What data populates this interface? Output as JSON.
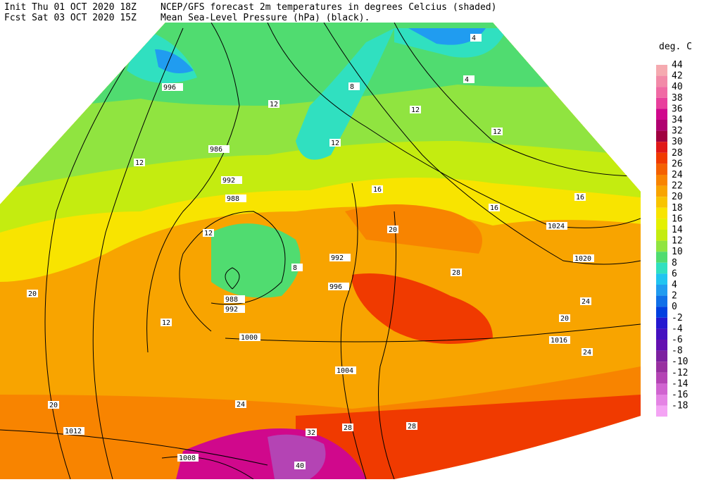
{
  "header": {
    "init": "Init  Thu 01 OCT 2020 18Z",
    "fcst": "Fcst Sat 03 OCT 2020 15Z",
    "title": "NCEP/GFS forecast 2m temperatures in degrees Celcius (shaded)",
    "subtitle": "Mean Sea-Level Pressure (hPa) (black)."
  },
  "legend": {
    "unit": "deg. C",
    "levels": [
      44,
      42,
      40,
      38,
      36,
      34,
      32,
      30,
      28,
      26,
      24,
      22,
      20,
      18,
      16,
      14,
      12,
      10,
      8,
      6,
      4,
      2,
      0,
      -2,
      -4,
      -6,
      -8,
      -10,
      -12,
      -14,
      -16,
      -18
    ],
    "colors": [
      "#f5aab0",
      "#f28aa8",
      "#f06aa4",
      "#e8409c",
      "#d0088c",
      "#b00070",
      "#a00040",
      "#e01818",
      "#f03a00",
      "#f46000",
      "#f88400",
      "#f8a400",
      "#f8c400",
      "#f8e400",
      "#e4f000",
      "#c4ec10",
      "#90e440",
      "#50dc70",
      "#30e0c0",
      "#20c4f0",
      "#209cf0",
      "#1070e8",
      "#0040e0",
      "#2418d0",
      "#4410c0",
      "#6410b0",
      "#7c20a0",
      "#9830a0",
      "#b444b4",
      "#d064d0",
      "#e484e4",
      "#f4a4f4"
    ]
  },
  "map": {
    "isobar_labels": [
      "996",
      "986",
      "992",
      "988",
      "988",
      "992",
      "992",
      "996",
      "1000",
      "1004",
      "1008",
      "1012",
      "1016",
      "1020",
      "1024"
    ],
    "temperature_labels": [
      "4",
      "4",
      "8",
      "8",
      "12",
      "12",
      "12",
      "12",
      "12",
      "12",
      "12",
      "16",
      "16",
      "16",
      "20",
      "20",
      "20",
      "20",
      "24",
      "24",
      "24",
      "28",
      "28",
      "28",
      "32",
      "40"
    ]
  }
}
